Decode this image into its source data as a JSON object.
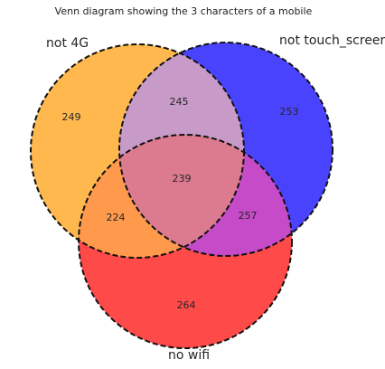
{
  "title": "Venn diagram showing the 3 characters of a mobile",
  "sets": [
    {
      "key": "a",
      "label": "not 4G",
      "color": "#ffb84d"
    },
    {
      "key": "b",
      "label": "not touch_screen",
      "color": "#4a43fe"
    },
    {
      "key": "c",
      "label": "no wifi",
      "color": "#ff4a4a"
    }
  ],
  "regions": {
    "a_only": 249,
    "b_only": 253,
    "c_only": 264,
    "ab": 245,
    "ac": 224,
    "bc": 257,
    "abc": 239
  },
  "region_colors": {
    "ab": "#c79ac8",
    "ac": "#ff9a4c",
    "bc": "#c54bc8",
    "abc": "#dc7b90"
  }
}
